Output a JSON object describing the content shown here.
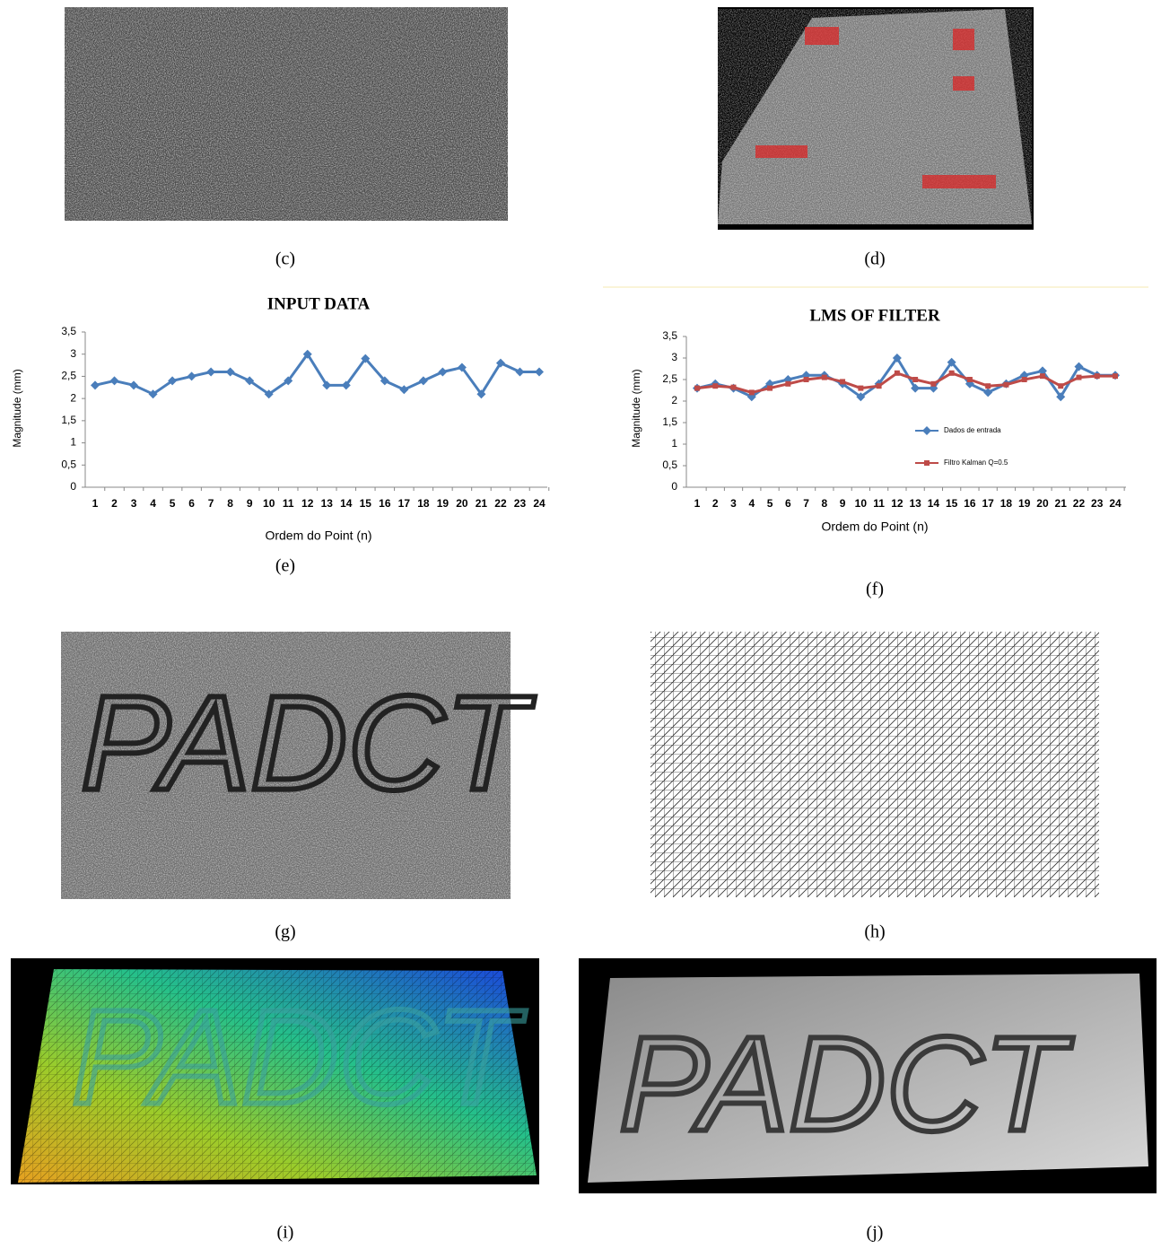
{
  "panels": [
    {
      "caption": "(c)"
    },
    {
      "caption": "(d)"
    },
    {
      "caption": "(e)"
    },
    {
      "caption": "(f)"
    },
    {
      "caption": "(g)",
      "image_text": "PADCT"
    },
    {
      "caption": "(h)"
    },
    {
      "caption": "(i)",
      "image_text": "PADCT"
    },
    {
      "caption": "(j)",
      "image_text": "PADCT"
    }
  ],
  "chart_data": [
    {
      "type": "line",
      "title": "INPUT DATA",
      "x_label": "Ordem do Point (n)",
      "y_label": "Magnitude (mm)",
      "categories": [
        "1",
        "2",
        "3",
        "4",
        "5",
        "6",
        "7",
        "8",
        "9",
        "10",
        "11",
        "12",
        "13",
        "14",
        "15",
        "16",
        "17",
        "18",
        "19",
        "20",
        "21",
        "22",
        "23",
        "24"
      ],
      "series": [
        {
          "color": "#4a7ebb",
          "marker": "diamond",
          "values": [
            2.3,
            2.4,
            2.3,
            2.1,
            2.4,
            2.5,
            2.6,
            2.6,
            2.4,
            2.1,
            2.4,
            3.0,
            2.3,
            2.3,
            2.9,
            2.4,
            2.2,
            2.4,
            2.6,
            2.7,
            2.1,
            2.8,
            2.6,
            2.6
          ]
        }
      ],
      "ylim": [
        0,
        3.5
      ],
      "yticks": [
        0,
        {
          "value": 0.5,
          "label": "0,5"
        },
        1,
        {
          "value": 1.5,
          "label": "1,5"
        },
        2,
        {
          "value": 2.5,
          "label": "2,5"
        },
        3,
        {
          "value": 3.5,
          "label": "3,5"
        }
      ],
      "grid": false
    },
    {
      "type": "line",
      "title": "LMS OF FILTER",
      "x_label": "Ordem do Point (n)",
      "y_label": "Magnitude (mm)",
      "categories": [
        "1",
        "2",
        "3",
        "4",
        "5",
        "6",
        "7",
        "8",
        "9",
        "10",
        "11",
        "12",
        "13",
        "14",
        "15",
        "16",
        "17",
        "18",
        "19",
        "20",
        "21",
        "22",
        "23",
        "24"
      ],
      "series": [
        {
          "name": "Dados de entrada",
          "color": "#4a7ebb",
          "marker": "diamond",
          "values": [
            2.3,
            2.4,
            2.3,
            2.1,
            2.4,
            2.5,
            2.6,
            2.6,
            2.4,
            2.1,
            2.4,
            3.0,
            2.3,
            2.3,
            2.9,
            2.4,
            2.2,
            2.4,
            2.6,
            2.7,
            2.1,
            2.8,
            2.6,
            2.6
          ]
        },
        {
          "name": "Filtro Kalman Q=0.5",
          "color": "#be4b48",
          "marker": "square",
          "values": [
            2.3,
            2.35,
            2.32,
            2.2,
            2.3,
            2.4,
            2.5,
            2.55,
            2.45,
            2.3,
            2.35,
            2.65,
            2.5,
            2.4,
            2.65,
            2.5,
            2.35,
            2.38,
            2.5,
            2.58,
            2.35,
            2.55,
            2.58,
            2.58
          ]
        }
      ],
      "ylim": [
        0,
        3.5
      ],
      "yticks": [
        0,
        {
          "value": 0.5,
          "label": "0,5"
        },
        1,
        {
          "value": 1.5,
          "label": "1,5"
        },
        2,
        {
          "value": 2.5,
          "label": "2,5"
        },
        3,
        {
          "value": 3.5,
          "label": "3,5"
        }
      ],
      "grid": false,
      "legend": "right"
    }
  ]
}
